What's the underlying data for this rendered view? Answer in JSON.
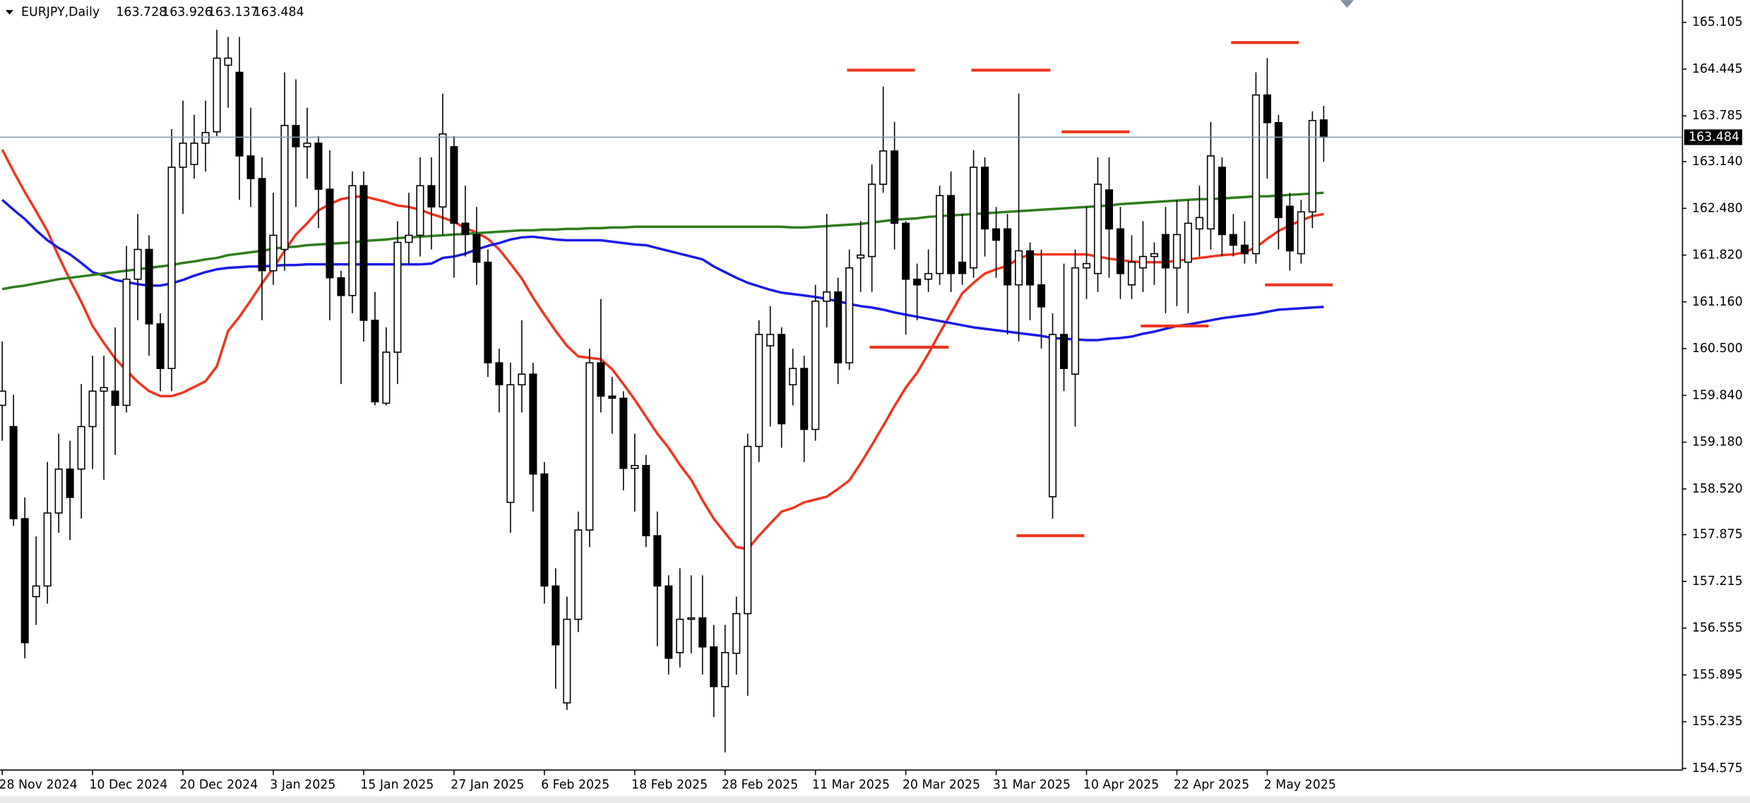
{
  "chart_data": {
    "type": "candlestick",
    "title": "EURJPY,Daily",
    "categories": [
      "28 Nov 2024",
      null,
      null,
      null,
      null,
      null,
      null,
      null,
      "10 Dec 2024",
      null,
      null,
      null,
      null,
      null,
      null,
      null,
      "20 Dec 2024",
      null,
      null,
      null,
      null,
      null,
      null,
      null,
      "3 Jan 2025",
      null,
      null,
      null,
      null,
      null,
      null,
      null,
      "15 Jan 2025",
      null,
      null,
      null,
      null,
      null,
      null,
      null,
      "27 Jan 2025",
      null,
      null,
      null,
      null,
      null,
      null,
      null,
      "6 Feb 2025",
      null,
      null,
      null,
      null,
      null,
      null,
      null,
      "18 Feb 2025",
      null,
      null,
      null,
      null,
      null,
      null,
      null,
      "28 Feb 2025",
      null,
      null,
      null,
      null,
      null,
      null,
      null,
      "11 Mar 2025",
      null,
      null,
      null,
      null,
      null,
      null,
      null,
      "20 Mar 2025",
      null,
      null,
      null,
      null,
      null,
      null,
      null,
      "31 Mar 2025",
      null,
      null,
      null,
      null,
      null,
      null,
      null,
      "10 Apr 2025",
      null,
      null,
      null,
      null,
      null,
      null,
      null,
      "22 Apr 2025",
      null,
      null,
      null,
      null,
      null,
      null,
      null,
      "2 May 2025",
      null,
      null,
      null,
      null,
      null
    ],
    "open": [
      159.7,
      159.4,
      158.1,
      157.0,
      157.15,
      158.18,
      158.8,
      158.8,
      159.4,
      159.9,
      159.9,
      159.7,
      161.48,
      161.9,
      160.85,
      160.22,
      163.06,
      163.1,
      163.4,
      163.56,
      164.5,
      164.4,
      163.22,
      162.9,
      161.6,
      161.9,
      163.65,
      163.35,
      163.4,
      162.75,
      161.5,
      161.25,
      162.8,
      160.9,
      159.73,
      160.45,
      162.0,
      162.1,
      162.8,
      162.5,
      163.35,
      162.27,
      162.11,
      161.72,
      160.3,
      158.33,
      159.99,
      160.14,
      158.73,
      157.15,
      155.5,
      156.68,
      157.94,
      160.3,
      159.83,
      159.8,
      158.81,
      158.85,
      157.86,
      157.15,
      156.21,
      156.68,
      156.7,
      156.29,
      155.73,
      156.2,
      156.76,
      159.12,
      160.54,
      160.7,
      159.99,
      160.22,
      159.36,
      161.17,
      161.3,
      160.3,
      161.78,
      161.8,
      162.82,
      163.29,
      162.27,
      161.48,
      161.48,
      161.56,
      162.66,
      161.72,
      161.64,
      163.06,
      162.19,
      162.19,
      161.4,
      161.88,
      161.4,
      158.41,
      160.7,
      160.14,
      161.64,
      161.56,
      162.74,
      162.19,
      161.4,
      161.64,
      161.8,
      162.11,
      161.64,
      161.72,
      162.19,
      162.19,
      163.06,
      162.11,
      161.96,
      161.84,
      164.08,
      163.69,
      162.51,
      161.84,
      162.43,
      163.728
    ],
    "high": [
      160.6,
      159.85,
      158.4,
      157.85,
      158.9,
      159.3,
      159.2,
      160.0,
      160.4,
      160.4,
      160.8,
      161.95,
      162.4,
      162.1,
      161.0,
      163.6,
      164.0,
      163.8,
      164.0,
      165.0,
      164.9,
      164.9,
      163.9,
      163.2,
      162.7,
      164.4,
      164.3,
      163.9,
      163.5,
      163.3,
      161.6,
      163.0,
      163.0,
      161.3,
      160.8,
      162.3,
      162.7,
      163.2,
      163.2,
      164.1,
      163.5,
      162.8,
      162.5,
      161.9,
      160.5,
      160.3,
      160.9,
      160.3,
      158.9,
      157.4,
      157.0,
      158.2,
      160.5,
      161.2,
      160.1,
      159.9,
      159.3,
      159.0,
      158.2,
      157.3,
      157.4,
      157.3,
      157.3,
      156.6,
      156.6,
      157.0,
      159.3,
      160.9,
      161.1,
      160.8,
      160.5,
      160.4,
      161.4,
      162.4,
      161.5,
      161.9,
      162.3,
      163.1,
      164.2,
      163.7,
      162.3,
      161.7,
      161.9,
      162.8,
      163.0,
      162.4,
      163.3,
      163.2,
      162.5,
      162.4,
      164.1,
      162.0,
      161.9,
      161.0,
      161.7,
      161.9,
      162.5,
      163.2,
      163.2,
      162.5,
      162.1,
      162.3,
      162.0,
      162.5,
      162.6,
      162.6,
      162.8,
      163.7,
      163.2,
      162.4,
      162.3,
      164.4,
      164.6,
      163.8,
      162.7,
      162.6,
      163.85,
      163.926
    ],
    "low": [
      159.2,
      158.0,
      156.13,
      156.6,
      156.9,
      157.9,
      157.8,
      158.1,
      158.8,
      158.65,
      159.0,
      159.6,
      160.9,
      160.4,
      159.9,
      159.9,
      162.4,
      162.9,
      163.0,
      163.5,
      163.9,
      162.6,
      162.5,
      160.9,
      161.4,
      161.6,
      162.5,
      162.9,
      162.2,
      160.9,
      160.0,
      161.0,
      160.6,
      159.7,
      159.7,
      160.0,
      161.7,
      161.8,
      161.9,
      162.1,
      161.5,
      161.8,
      161.4,
      160.1,
      159.6,
      157.9,
      159.6,
      158.2,
      156.9,
      155.7,
      155.4,
      156.5,
      157.7,
      159.6,
      159.3,
      158.5,
      158.2,
      157.7,
      156.3,
      155.9,
      156.0,
      156.2,
      155.9,
      155.3,
      154.8,
      155.9,
      155.6,
      158.9,
      159.4,
      159.1,
      159.7,
      158.9,
      159.2,
      160.8,
      160.0,
      160.2,
      161.3,
      161.3,
      162.7,
      161.9,
      160.7,
      160.9,
      161.3,
      161.4,
      161.3,
      161.4,
      161.5,
      161.8,
      161.5,
      160.7,
      160.6,
      160.9,
      160.5,
      158.1,
      159.9,
      159.4,
      161.2,
      161.3,
      161.5,
      161.2,
      161.2,
      161.3,
      161.4,
      161.0,
      161.1,
      161.0,
      161.8,
      161.9,
      161.8,
      161.8,
      161.7,
      161.7,
      162.9,
      161.9,
      161.6,
      161.7,
      162.2,
      163.137
    ],
    "close": [
      159.9,
      158.1,
      156.35,
      157.15,
      158.18,
      158.8,
      158.4,
      159.4,
      159.9,
      159.95,
      159.7,
      161.48,
      161.9,
      160.85,
      160.22,
      163.06,
      163.4,
      163.4,
      163.55,
      164.6,
      164.6,
      163.22,
      162.9,
      161.6,
      162.1,
      163.65,
      163.35,
      163.4,
      162.75,
      161.5,
      161.25,
      162.8,
      160.9,
      159.75,
      160.45,
      162.0,
      162.1,
      162.8,
      162.5,
      163.53,
      162.27,
      162.11,
      161.72,
      160.3,
      159.99,
      159.99,
      160.14,
      158.73,
      157.15,
      156.32,
      156.68,
      157.94,
      160.3,
      159.83,
      159.8,
      158.81,
      158.85,
      157.86,
      157.15,
      156.13,
      156.68,
      156.7,
      156.29,
      155.73,
      156.21,
      156.76,
      159.12,
      160.7,
      160.7,
      159.44,
      160.22,
      159.36,
      161.17,
      161.3,
      160.3,
      161.64,
      161.82,
      162.82,
      163.29,
      162.27,
      161.48,
      161.4,
      161.56,
      162.66,
      161.56,
      161.56,
      163.06,
      162.19,
      162.03,
      161.4,
      161.88,
      161.4,
      161.09,
      160.7,
      160.22,
      161.64,
      161.7,
      162.82,
      162.19,
      161.56,
      161.72,
      161.8,
      161.84,
      161.64,
      162.11,
      162.27,
      162.35,
      163.22,
      162.11,
      161.96,
      161.84,
      164.08,
      163.69,
      162.35,
      161.88,
      162.43,
      163.72,
      163.484
    ],
    "up_color": "#ffffff",
    "down_color": "#000000",
    "lines": [
      {
        "color": "#f0341e",
        "values": [
          163.31,
          163.0,
          162.71,
          162.44,
          162.16,
          161.8,
          161.47,
          161.16,
          160.82,
          160.58,
          160.36,
          160.19,
          160.03,
          159.9,
          159.83,
          159.83,
          159.88,
          159.96,
          160.04,
          160.25,
          160.75,
          160.95,
          161.18,
          161.42,
          161.64,
          161.88,
          162.11,
          162.27,
          162.45,
          162.54,
          162.61,
          162.64,
          162.65,
          162.61,
          162.57,
          162.52,
          162.5,
          162.46,
          162.4,
          162.35,
          162.29,
          162.2,
          162.14,
          162.05,
          161.9,
          161.7,
          161.49,
          161.22,
          160.98,
          160.75,
          160.54,
          160.39,
          160.37,
          160.35,
          160.21,
          160.0,
          159.78,
          159.54,
          159.3,
          159.1,
          158.86,
          158.65,
          158.36,
          158.1,
          157.9,
          157.7,
          157.67,
          157.86,
          158.03,
          158.2,
          158.25,
          158.33,
          158.37,
          158.41,
          158.52,
          158.64,
          158.88,
          159.14,
          159.41,
          159.69,
          159.95,
          160.16,
          160.43,
          160.72,
          161.0,
          161.28,
          161.43,
          161.56,
          161.62,
          161.67,
          161.77,
          161.83,
          161.83,
          161.83,
          161.83,
          161.83,
          161.83,
          161.8,
          161.77,
          161.75,
          161.73,
          161.72,
          161.72,
          161.72,
          161.74,
          161.76,
          161.78,
          161.8,
          161.82,
          161.83,
          161.86,
          161.93,
          162.05,
          162.16,
          162.24,
          162.31,
          162.37,
          162.4
        ]
      },
      {
        "color": "#1a1ae6",
        "values": [
          162.6,
          162.46,
          162.33,
          162.17,
          162.03,
          161.92,
          161.83,
          161.71,
          161.58,
          161.53,
          161.47,
          161.44,
          161.41,
          161.39,
          161.39,
          161.42,
          161.47,
          161.53,
          161.58,
          161.62,
          161.64,
          161.65,
          161.66,
          161.66,
          161.67,
          161.68,
          161.68,
          161.69,
          161.69,
          161.69,
          161.69,
          161.69,
          161.69,
          161.69,
          161.69,
          161.69,
          161.69,
          161.69,
          161.7,
          161.78,
          161.8,
          161.84,
          161.9,
          161.95,
          161.99,
          162.04,
          162.07,
          162.08,
          162.06,
          162.04,
          162.03,
          162.03,
          162.03,
          162.03,
          162.01,
          161.99,
          161.97,
          161.96,
          161.92,
          161.88,
          161.84,
          161.8,
          161.76,
          161.66,
          161.58,
          161.5,
          161.43,
          161.38,
          161.33,
          161.29,
          161.27,
          161.25,
          161.23,
          161.2,
          161.17,
          161.13,
          161.1,
          161.08,
          161.05,
          161.01,
          160.98,
          160.95,
          160.92,
          160.89,
          160.86,
          160.83,
          160.8,
          160.78,
          160.76,
          160.74,
          160.72,
          160.7,
          160.68,
          160.65,
          160.64,
          160.63,
          160.62,
          160.62,
          160.64,
          160.65,
          160.67,
          160.71,
          160.74,
          160.78,
          160.82,
          160.84,
          160.87,
          160.9,
          160.93,
          160.95,
          160.97,
          160.99,
          161.02,
          161.05,
          161.06,
          161.07,
          161.08,
          161.09
        ]
      },
      {
        "color": "#2e7d1c",
        "values": [
          161.34,
          161.37,
          161.39,
          161.42,
          161.45,
          161.48,
          161.5,
          161.52,
          161.54,
          161.56,
          161.58,
          161.6,
          161.62,
          161.64,
          161.66,
          161.68,
          161.71,
          161.73,
          161.76,
          161.78,
          161.82,
          161.84,
          161.86,
          161.88,
          161.91,
          161.93,
          161.94,
          161.96,
          161.97,
          161.98,
          161.99,
          162.0,
          162.02,
          162.03,
          162.04,
          162.06,
          162.07,
          162.08,
          162.09,
          162.1,
          162.11,
          162.12,
          162.13,
          162.14,
          162.15,
          162.16,
          162.17,
          162.17,
          162.18,
          162.18,
          162.19,
          162.19,
          162.2,
          162.2,
          162.21,
          162.21,
          162.22,
          162.22,
          162.22,
          162.22,
          162.22,
          162.22,
          162.22,
          162.22,
          162.22,
          162.22,
          162.22,
          162.22,
          162.22,
          162.22,
          162.21,
          162.21,
          162.22,
          162.23,
          162.24,
          162.25,
          162.26,
          162.28,
          162.3,
          162.32,
          162.33,
          162.34,
          162.36,
          162.37,
          162.38,
          162.39,
          162.4,
          162.41,
          162.42,
          162.43,
          162.44,
          162.45,
          162.46,
          162.47,
          162.48,
          162.49,
          162.5,
          162.51,
          162.52,
          162.54,
          162.55,
          162.56,
          162.57,
          162.58,
          162.59,
          162.6,
          162.61,
          162.61,
          162.62,
          162.63,
          162.64,
          162.65,
          162.65,
          162.66,
          162.67,
          162.68,
          162.69,
          162.7
        ]
      }
    ],
    "levels": [
      {
        "value": 164.43,
        "x": [
          75,
          81
        ]
      },
      {
        "value": 164.43,
        "x": [
          86,
          93
        ]
      },
      {
        "value": 163.56,
        "x": [
          94,
          100
        ]
      },
      {
        "value": 164.82,
        "x": [
          109,
          115
        ]
      },
      {
        "value": 160.52,
        "x": [
          77,
          84
        ]
      },
      {
        "value": 157.86,
        "x": [
          90,
          96
        ]
      },
      {
        "value": 160.82,
        "x": [
          101,
          107
        ]
      },
      {
        "value": 161.4,
        "x": [
          112,
          118
        ]
      }
    ],
    "level_color": "#f0341e",
    "price_line_color": "#8a98a8",
    "ylim": [
      154.56,
      165.42
    ],
    "yticks": [
      165.105,
      164.445,
      163.785,
      {
        "value": 163.14,
        "label": "163.140"
      },
      {
        "value": 162.48,
        "label": "162.480"
      },
      {
        "value": 161.82,
        "label": "161.820"
      },
      {
        "value": 161.16,
        "label": "161.160"
      },
      {
        "value": 160.5,
        "label": "160.500"
      },
      {
        "value": 159.84,
        "label": "159.840"
      },
      {
        "value": 159.18,
        "label": "159.180"
      },
      {
        "value": 158.52,
        "label": "158.520"
      },
      157.875,
      157.215,
      156.555,
      155.895,
      155.235,
      154.575
    ]
  }
}
